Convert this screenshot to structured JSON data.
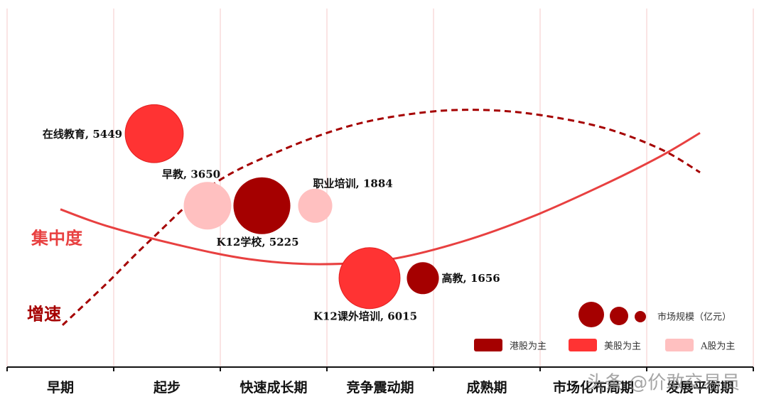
{
  "chart_data": {
    "type": "bubble",
    "categories": [
      "早期",
      "起步",
      "快速成长期",
      "竞争震动期",
      "成熟期",
      "市场化布局期",
      "发展平衡期"
    ],
    "xlim": [
      0,
      7
    ],
    "xticks": [
      0,
      1,
      2,
      3,
      4,
      5,
      6,
      7
    ],
    "ylim": [
      0,
      100
    ],
    "grid": true,
    "bubbles": [
      {
        "label": "在线教育, 5449",
        "size": 5449,
        "x": 1.38,
        "y": 65.1,
        "color": "#ff3333"
      },
      {
        "label": "早教, 3650",
        "size": 3650,
        "x": 1.88,
        "y": 45,
        "color": "#ffc0c0"
      },
      {
        "label": "K12学校, 5225",
        "size": 5225,
        "x": 2.39,
        "y": 45,
        "color": "#a50000"
      },
      {
        "label": "职业培训, 1884",
        "size": 1884,
        "x": 2.89,
        "y": 45,
        "color": "#ffc0c0"
      },
      {
        "label": "K12课外培训, 6015",
        "size": 6015,
        "x": 3.4,
        "y": 24.8,
        "color": "#ff3333"
      },
      {
        "label": "高教, 1656",
        "size": 1656,
        "x": 3.9,
        "y": 24.8,
        "color": "#a50000"
      }
    ],
    "curves": [
      {
        "name": "增速",
        "color": "#a50000",
        "dashed": true,
        "x": [
          0.52,
          0.93,
          1.33,
          1.93,
          2.6,
          3.27,
          3.93,
          4.47,
          5.0,
          5.6,
          6.13,
          6.5
        ],
        "y": [
          11.7,
          23.2,
          35.0,
          50.9,
          60.8,
          67.7,
          71.1,
          71.7,
          70.3,
          66.7,
          60.8,
          54.3
        ]
      },
      {
        "name": "集中度",
        "color": "#e84040",
        "dashed": false,
        "x": [
          0.5,
          0.93,
          1.6,
          2.27,
          2.93,
          3.6,
          4.27,
          4.93,
          5.6,
          6.13,
          6.5
        ],
        "y": [
          44.0,
          39.4,
          34.1,
          30.1,
          28.7,
          30.1,
          35.0,
          42.0,
          50.9,
          58.8,
          65.3
        ]
      }
    ],
    "size_legend_title": "市场规模（亿元）",
    "legend": [
      {
        "name": "港股为主",
        "color": "#a50000"
      },
      {
        "name": "美股为主",
        "color": "#ff3333"
      },
      {
        "name": "A股为主",
        "color": "#ffc0c0"
      }
    ],
    "watermark": "头条 @价敢交易员"
  }
}
